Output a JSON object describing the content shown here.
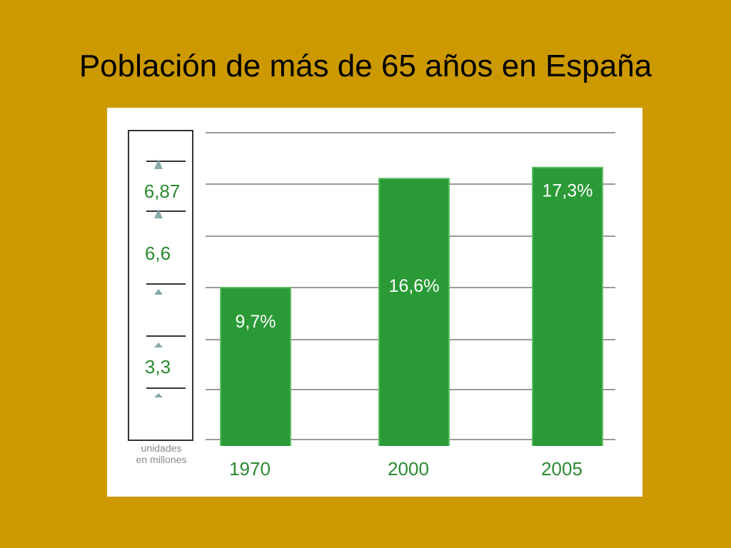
{
  "title": "Población de más de 65 años en España",
  "chart_data": {
    "type": "bar",
    "title": "",
    "xlabel": "",
    "ylabel": "",
    "categories": [
      "1970",
      "2000",
      "2005"
    ],
    "values": [
      9.7,
      16.6,
      17.3
    ],
    "value_labels": [
      "9,7%",
      "16,6%",
      "17,3%"
    ],
    "unit": "%",
    "ylim": [
      0,
      19.5
    ],
    "grid": true,
    "bar_color": "#2a9a36",
    "scale_side_panel": {
      "labels": [
        "6,87",
        "6,6",
        "3,3"
      ],
      "note_lines": [
        "unidades",
        "en millones"
      ]
    }
  }
}
